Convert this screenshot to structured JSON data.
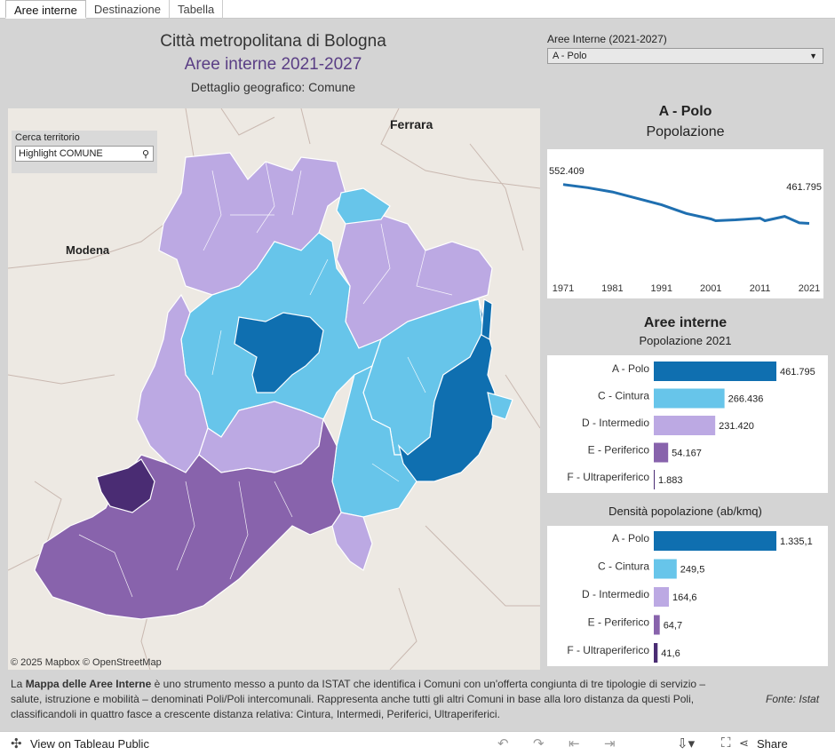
{
  "tabs": [
    {
      "label": "Aree interne",
      "active": true
    },
    {
      "label": "Destinazione",
      "active": false
    },
    {
      "label": "Tabella",
      "active": false
    }
  ],
  "header": {
    "line1": "Città metropolitana di Bologna",
    "line2": "Aree interne 2021-2027",
    "line3": "Dettaglio geografico: Comune"
  },
  "filter": {
    "label": "Aree Interne (2021-2027)",
    "selected": "A - Polo"
  },
  "map": {
    "cities": [
      "Ferrara",
      "Modena"
    ],
    "search": {
      "label": "Cerca territorio",
      "placeholder": "Highlight COMUNE"
    },
    "credit": "© 2025 Mapbox  © OpenStreetMap",
    "colors": {
      "polo": "#0f6fb0",
      "cintura": "#67c5ea",
      "intermedio": "#bca9e3",
      "periferico": "#8863ac",
      "ultraperiferico": "#4a2c73"
    }
  },
  "line_panel": {
    "title": "A - Polo",
    "subtitle": "Popolazione",
    "start_label": "552.409",
    "end_label": "461.795",
    "x_ticks": [
      "1971",
      "1981",
      "1991",
      "2001",
      "2011",
      "2021"
    ]
  },
  "bars_pop": {
    "title": "Aree interne",
    "subtitle": "Popolazione 2021"
  },
  "bars_dens": {
    "title": "Densità popolazione (ab/kmq)"
  },
  "chart_data": [
    {
      "type": "line",
      "title": "A - Polo",
      "subtitle": "Popolazione",
      "x": [
        1971,
        1976,
        1981,
        1986,
        1991,
        1996,
        2001,
        2002,
        2006,
        2011,
        2012,
        2016,
        2019,
        2021
      ],
      "y": [
        552409,
        545000,
        535000,
        520000,
        505000,
        485000,
        472000,
        468000,
        470000,
        474000,
        468000,
        478000,
        463000,
        461795
      ],
      "xlim": [
        1971,
        2021
      ],
      "ylim": [
        0,
        560000
      ]
    },
    {
      "type": "bar",
      "title": "Aree interne",
      "subtitle": "Popolazione 2021",
      "categories": [
        "A - Polo",
        "C - Cintura",
        "D - Intermedio",
        "E - Periferico",
        "F - Ultraperiferico"
      ],
      "values": [
        461795,
        266436,
        231420,
        54167,
        1883
      ],
      "labels": [
        "461.795",
        "266.436",
        "231.420",
        "54.167",
        "1.883"
      ],
      "colors": [
        "#0f6fb0",
        "#67c5ea",
        "#bca9e3",
        "#8863ac",
        "#4a2c73"
      ],
      "ylim": [
        0,
        461795
      ]
    },
    {
      "type": "bar",
      "title": "Densità popolazione (ab/kmq)",
      "categories": [
        "A - Polo",
        "C - Cintura",
        "D - Intermedio",
        "E - Periferico",
        "F - Ultraperiferico"
      ],
      "values": [
        1335.1,
        249.5,
        164.6,
        64.7,
        41.6
      ],
      "labels": [
        "1.335,1",
        "249,5",
        "164,6",
        "64,7",
        "41,6"
      ],
      "colors": [
        "#0f6fb0",
        "#67c5ea",
        "#bca9e3",
        "#8863ac",
        "#4a2c73"
      ],
      "ylim": [
        0,
        1335.1
      ]
    }
  ],
  "description": {
    "bold": "Mappa delle Aree Interne",
    "pre": "La ",
    "post": " è uno strumento messo a punto da ISTAT che identifica i Comuni con un'offerta congiunta di tre tipologie di servizio – salute, istruzione e mobilità – denominati Poli/Poli intercomunali. Rappresenta anche tutti gli altri Comuni in base alla loro distanza da questi Poli, classificandoli in quattro fasce a crescente distanza relativa: Cintura, Intermedi, Periferici, Ultraperiferici."
  },
  "source": "Fonte: Istat",
  "footer": {
    "view_label": "View on Tableau Public",
    "share_label": "Share"
  }
}
